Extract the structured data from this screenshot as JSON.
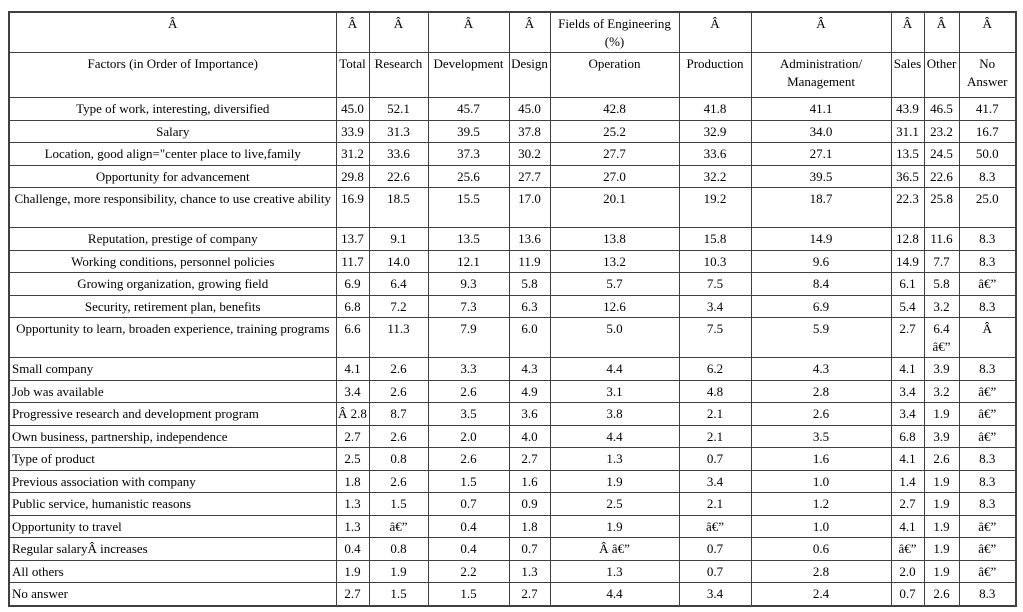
{
  "page": {
    "background_color": "#ffffff",
    "text_color": "#000000",
    "border_color": "#404040"
  },
  "table": {
    "title_cell": "Fields of Engineering (%)",
    "header_row_1": {
      "cells": [
        "Â",
        "Â",
        "Â",
        "Â",
        "Â",
        "Fields of Engineering (%)",
        "Â",
        "Â",
        "Â",
        "Â",
        "Â"
      ]
    },
    "header_row_2": {
      "cells": [
        "Factors (in Order of Importance)",
        "Total",
        "Research",
        "Development",
        "Design",
        "Operation",
        "Production",
        "Administration/ Management",
        "Sales",
        "Other",
        "No Answer"
      ]
    },
    "rows": [
      {
        "factor": "Type of work, interesting, diversified",
        "align": "center",
        "lines": 1,
        "values": [
          "45.0",
          "52.1",
          "45.7",
          "45.0",
          "42.8",
          "41.8",
          "41.1",
          "43.9",
          "46.5",
          "41.7"
        ]
      },
      {
        "factor": "Salary",
        "align": "center",
        "lines": 1,
        "values": [
          "33.9",
          "31.3",
          "39.5",
          "37.8",
          "25.2",
          "32.9",
          "34.0",
          "31.1",
          "23.2",
          "16.7"
        ]
      },
      {
        "factor": "Location, good align=\"center place to live,family",
        "align": "center",
        "lines": 1,
        "values": [
          "31.2",
          "33.6",
          "37.3",
          "30.2",
          "27.7",
          "33.6",
          "27.1",
          "13.5",
          "24.5",
          "50.0"
        ]
      },
      {
        "factor": "Opportunity for advancement",
        "align": "center",
        "lines": 1,
        "values": [
          "29.8",
          "22.6",
          "25.6",
          "27.7",
          "27.0",
          "32.2",
          "39.5",
          "36.5",
          "22.6",
          "8.3"
        ]
      },
      {
        "factor": "Challenge, more responsibility, chance to use creative ability",
        "align": "center",
        "lines": 2,
        "values": [
          "16.9",
          "18.5",
          "15.5",
          "17.0",
          "20.1",
          "19.2",
          "18.7",
          "22.3",
          "25.8",
          "25.0"
        ]
      },
      {
        "factor": "Reputation, prestige of company",
        "align": "center",
        "lines": 1,
        "values": [
          "13.7",
          "9.1",
          "13.5",
          "13.6",
          "13.8",
          "15.8",
          "14.9",
          "12.8",
          "11.6",
          "8.3"
        ]
      },
      {
        "factor": "Working conditions, personnel policies",
        "align": "center",
        "lines": 1,
        "values": [
          "11.7",
          "14.0",
          "12.1",
          "11.9",
          "13.2",
          "10.3",
          "9.6",
          "14.9",
          "7.7",
          "8.3"
        ]
      },
      {
        "factor": "Growing organization, growing field",
        "align": "center",
        "lines": 1,
        "values": [
          "6.9",
          "6.4",
          "9.3",
          "5.8",
          "5.7",
          "7.5",
          "8.4",
          "6.1",
          "5.8",
          "â€”"
        ]
      },
      {
        "factor": "Security, retirement plan, benefits",
        "align": "center",
        "lines": 1,
        "values": [
          "6.8",
          "7.2",
          "7.3",
          "6.3",
          "12.6",
          "3.4",
          "6.9",
          "5.4",
          "3.2",
          "8.3"
        ]
      },
      {
        "factor": "Opportunity to learn, broaden experience, training programs",
        "align": "center",
        "lines": 2,
        "values": [
          "6.6",
          "11.3",
          "7.9",
          "6.0",
          "5.0",
          "7.5",
          "5.9",
          "2.7",
          "6.4 â€”",
          "Â"
        ]
      },
      {
        "factor": "Small company",
        "align": "left",
        "lines": 1,
        "values": [
          "4.1",
          "2.6",
          "3.3",
          "4.3",
          "4.4",
          "6.2",
          "4.3",
          "4.1",
          "3.9",
          "8.3"
        ]
      },
      {
        "factor": "Job was available",
        "align": "left",
        "lines": 1,
        "values": [
          "3.4",
          "2.6",
          "2.6",
          "4.9",
          "3.1",
          "4.8",
          "2.8",
          "3.4",
          "3.2",
          "â€”"
        ]
      },
      {
        "factor": "Progressive research and development program",
        "align": "left",
        "lines": 1,
        "values": [
          "Â 2.8",
          "8.7",
          "3.5",
          "3.6",
          "3.8",
          "2.1",
          "2.6",
          "3.4",
          "1.9",
          "â€”"
        ]
      },
      {
        "factor": "Own business, partnership, independence",
        "align": "left",
        "lines": 1,
        "values": [
          "2.7",
          "2.6",
          "2.0",
          "4.0",
          "4.4",
          "2.1",
          "3.5",
          "6.8",
          "3.9",
          "â€”"
        ]
      },
      {
        "factor": "Type of product",
        "align": "left",
        "lines": 1,
        "values": [
          "2.5",
          "0.8",
          "2.6",
          "2.7",
          "1.3",
          "0.7",
          "1.6",
          "4.1",
          "2.6",
          "8.3"
        ]
      },
      {
        "factor": "Previous association with company",
        "align": "left",
        "lines": 1,
        "values": [
          "1.8",
          "2.6",
          "1.5",
          "1.6",
          "1.9",
          "3.4",
          "1.0",
          "1.4",
          "1.9",
          "8.3"
        ]
      },
      {
        "factor": "Public service, humanistic reasons",
        "align": "left",
        "lines": 1,
        "values": [
          "1.3",
          "1.5",
          "0.7",
          "0.9",
          "2.5",
          "2.1",
          "1.2",
          "2.7",
          "1.9",
          "8.3"
        ]
      },
      {
        "factor": "Opportunity to travel",
        "align": "left",
        "lines": 1,
        "values": [
          "1.3",
          "â€”",
          "0.4",
          "1.8",
          "1.9",
          "â€”",
          "1.0",
          "4.1",
          "1.9",
          "â€”"
        ]
      },
      {
        "factor": "Regular salaryÂ increases",
        "align": "left",
        "lines": 1,
        "values": [
          "0.4",
          "0.8",
          "0.4",
          "0.7",
          "Â â€”",
          "0.7",
          "0.6",
          "â€”",
          "1.9",
          "â€”"
        ]
      },
      {
        "factor": "All others",
        "align": "left",
        "lines": 1,
        "values": [
          "1.9",
          "1.9",
          "2.2",
          "1.3",
          "1.3",
          "0.7",
          "2.8",
          "2.0",
          "1.9",
          "â€”"
        ]
      },
      {
        "factor": "No answer",
        "align": "left",
        "lines": 1,
        "values": [
          "2.7",
          "1.5",
          "1.5",
          "2.7",
          "4.4",
          "3.4",
          "2.4",
          "0.7",
          "2.6",
          "8.3"
        ]
      }
    ]
  }
}
